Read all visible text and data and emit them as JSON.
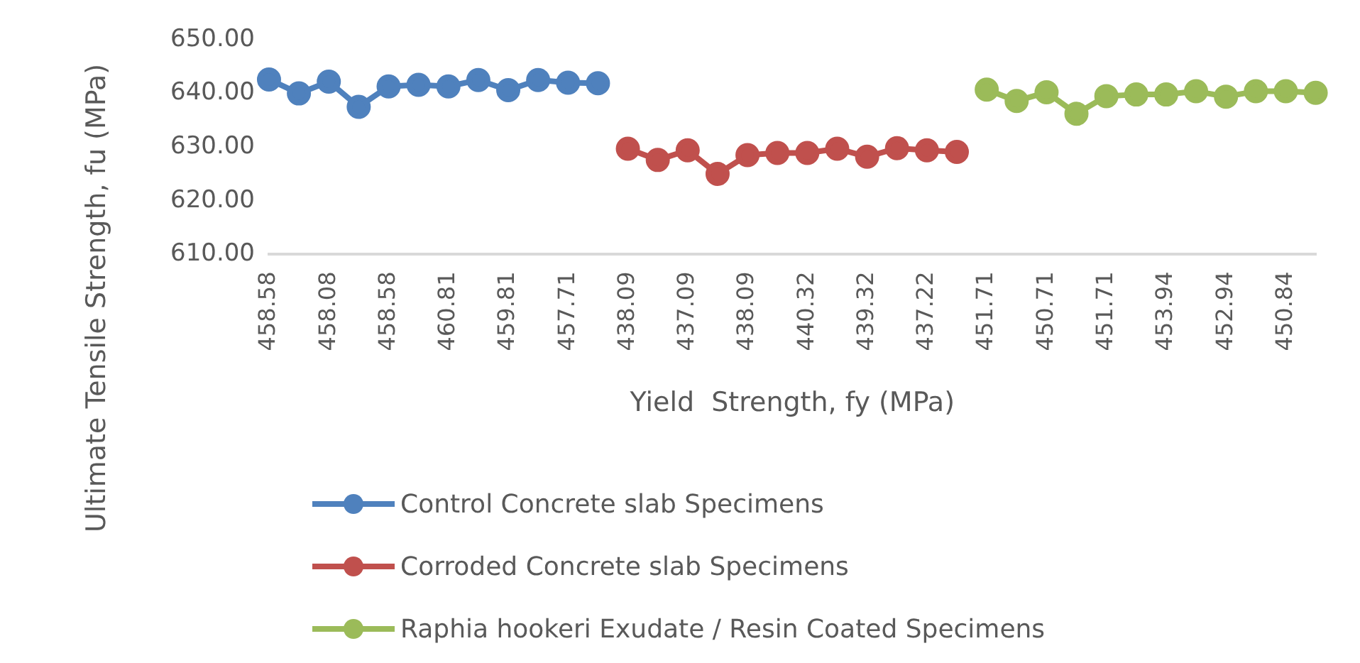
{
  "chart_data": {
    "type": "line",
    "xlabel": "Yield  Strength, fy (MPa)",
    "ylabel": "Ultimate Tensile Strength, fu (MPa)",
    "categories": [
      "458.58",
      null,
      "458.08",
      null,
      "458.58",
      null,
      "460.81",
      null,
      "459.81",
      null,
      "457.71",
      null,
      "438.09",
      null,
      "437.09",
      null,
      "438.09",
      null,
      "440.32",
      null,
      "439.32",
      null,
      "437.22",
      null,
      "451.71",
      null,
      "450.71",
      null,
      "451.71",
      null,
      "453.94",
      null,
      "452.94",
      null,
      "450.84",
      null
    ],
    "series": [
      {
        "name": "Control  Concrete slab Specimens",
        "color": "#4f81bd",
        "values": [
          642.6,
          640.0,
          642.2,
          637.5,
          641.3,
          641.6,
          641.3,
          642.5,
          640.6,
          642.5,
          642.0,
          641.9,
          null,
          null,
          null,
          null,
          null,
          null,
          null,
          null,
          null,
          null,
          null,
          null,
          null,
          null,
          null,
          null,
          null,
          null,
          null,
          null,
          null,
          null,
          null,
          null
        ]
      },
      {
        "name": "Corroded Concrete slab Specimens",
        "color": "#c0504d",
        "values": [
          null,
          null,
          null,
          null,
          null,
          null,
          null,
          null,
          null,
          null,
          null,
          null,
          629.7,
          627.6,
          629.4,
          625.0,
          628.5,
          628.9,
          628.9,
          629.7,
          628.2,
          629.8,
          629.4,
          629.1,
          null,
          null,
          null,
          null,
          null,
          null,
          null,
          null,
          null,
          null,
          null,
          null
        ]
      },
      {
        "name": "Raphia hookeri Exudate / Resin Coated Specimens",
        "color": "#9bbb59",
        "values": [
          null,
          null,
          null,
          null,
          null,
          null,
          null,
          null,
          null,
          null,
          null,
          null,
          null,
          null,
          null,
          null,
          null,
          null,
          null,
          null,
          null,
          null,
          null,
          null,
          640.7,
          638.6,
          640.2,
          636.2,
          639.5,
          639.8,
          639.8,
          640.4,
          639.4,
          640.4,
          640.4,
          640.1
        ]
      }
    ],
    "ylim": [
      610,
      650
    ],
    "yticks": [
      {
        "value": 610,
        "label": "610.00"
      },
      {
        "value": 620,
        "label": "620.00"
      },
      {
        "value": 630,
        "label": "630.00"
      },
      {
        "value": 640,
        "label": "640.00"
      },
      {
        "value": 650,
        "label": "650.00"
      }
    ],
    "grid": false,
    "legend": "bottom",
    "marker": "circle",
    "line_style": "solid"
  }
}
